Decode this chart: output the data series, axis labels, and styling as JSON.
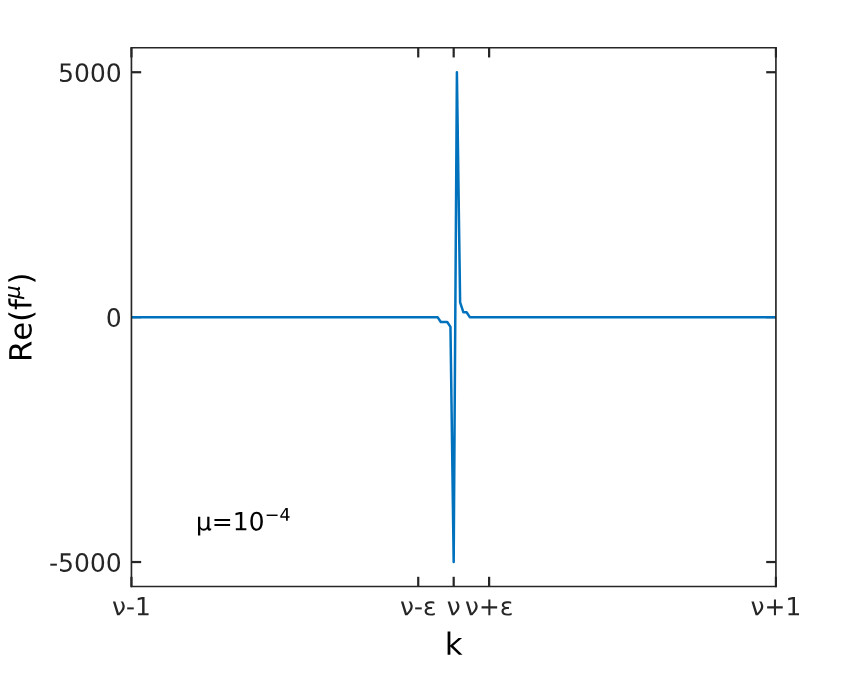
{
  "chart_data": {
    "type": "line",
    "xlabel": "k",
    "ylabel": "Re(f$^{μ}$)",
    "categories": [
      "ν-1",
      null,
      null,
      null,
      null,
      null,
      null,
      null,
      null,
      null,
      null,
      null,
      null,
      null,
      null,
      null,
      null,
      null,
      null,
      null,
      null,
      null,
      null,
      null,
      null,
      null,
      null,
      null,
      null,
      null,
      null,
      null,
      null,
      null,
      null,
      null,
      null,
      null,
      null,
      null,
      null,
      null,
      null,
      null,
      null,
      null,
      null,
      null,
      null,
      null,
      null,
      null,
      null,
      null,
      null,
      null,
      null,
      null,
      null,
      null,
      null,
      null,
      null,
      null,
      null,
      null,
      null,
      null,
      null,
      null,
      null,
      null,
      null,
      null,
      null,
      null,
      null,
      null,
      null,
      null,
      null,
      null,
      null,
      null,
      null,
      null,
      null,
      null,
      null,
      "ν-ε",
      null,
      null,
      null,
      null,
      null,
      null,
      null,
      null,
      null,
      null,
      "ν",
      null,
      null,
      null,
      null,
      null,
      null,
      null,
      null,
      null,
      null,
      "ν+ε",
      null,
      null,
      null,
      null,
      null,
      null,
      null,
      null,
      null,
      null,
      null,
      null,
      null,
      null,
      null,
      null,
      null,
      null,
      null,
      null,
      null,
      null,
      null,
      null,
      null,
      null,
      null,
      null,
      null,
      null,
      null,
      null,
      null,
      null,
      null,
      null,
      null,
      null,
      null,
      null,
      null,
      null,
      null,
      null,
      null,
      null,
      null,
      null,
      null,
      null,
      null,
      null,
      null,
      null,
      null,
      null,
      null,
      null,
      null,
      null,
      null,
      null,
      null,
      null,
      null,
      null,
      null,
      null,
      null,
      null,
      null,
      null,
      null,
      null,
      null,
      null,
      null,
      null,
      null,
      null,
      null,
      null,
      null,
      null,
      null,
      null,
      null,
      null,
      "ν+1"
    ],
    "series": [
      {
        "color": "#0072bd",
        "values": [
          0,
          0,
          0,
          0,
          0,
          0,
          0,
          0,
          0,
          0,
          0,
          0,
          0,
          0,
          0,
          0,
          0,
          0,
          0,
          0,
          0,
          0,
          0,
          0,
          0,
          0,
          0,
          0,
          0,
          0,
          0,
          0,
          0,
          0,
          0,
          0,
          0,
          0,
          0,
          0,
          0,
          0,
          0,
          0,
          0,
          0,
          0,
          0,
          0,
          0,
          0,
          0,
          0,
          0,
          0,
          0,
          0,
          0,
          0,
          0,
          0,
          0,
          0,
          0,
          0,
          0,
          0,
          0,
          0,
          0,
          0,
          0,
          0,
          0,
          0,
          0,
          0,
          0,
          0,
          0,
          0,
          0,
          0,
          0,
          0,
          0,
          0,
          0,
          0,
          0,
          0,
          0,
          0,
          0,
          0,
          0,
          -100,
          -100,
          -100,
          -200,
          -5000,
          5000,
          300,
          100,
          100,
          0,
          0,
          0,
          0,
          0,
          0,
          0,
          0,
          0,
          0,
          0,
          0,
          0,
          0,
          0,
          0,
          0,
          0,
          0,
          0,
          0,
          0,
          0,
          0,
          0,
          0,
          0,
          0,
          0,
          0,
          0,
          0,
          0,
          0,
          0,
          0,
          0,
          0,
          0,
          0,
          0,
          0,
          0,
          0,
          0,
          0,
          0,
          0,
          0,
          0,
          0,
          0,
          0,
          0,
          0,
          0,
          0,
          0,
          0,
          0,
          0,
          0,
          0,
          0,
          0,
          0,
          0,
          0,
          0,
          0,
          0,
          0,
          0,
          0,
          0,
          0,
          0,
          0,
          0,
          0,
          0,
          0,
          0,
          0,
          0,
          0,
          0,
          0,
          0,
          0,
          0,
          0,
          0,
          0,
          0,
          0
        ]
      }
    ],
    "ylim": [
      -5500,
      5500
    ],
    "yticks": [
      -5000,
      0,
      5000
    ],
    "annotations": [
      "μ=10$^{−4}$"
    ],
    "grid": false,
    "legend": false,
    "marker": "none",
    "line_style": "solid"
  }
}
